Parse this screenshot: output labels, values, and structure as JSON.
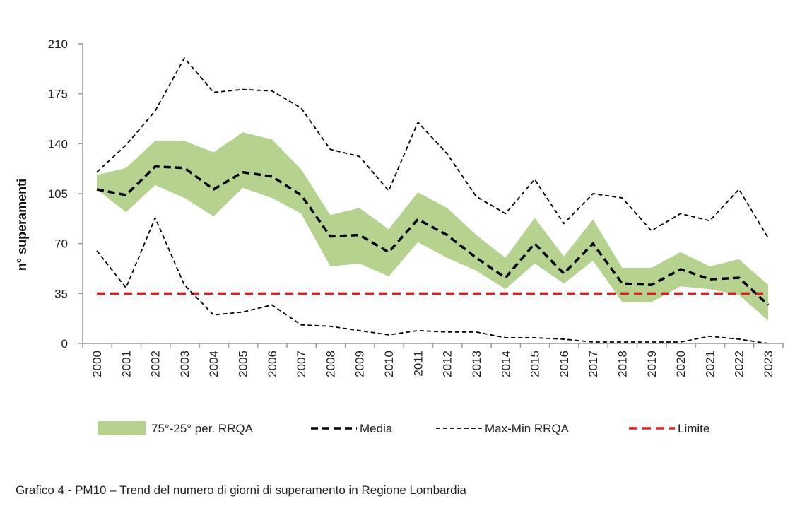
{
  "chart_data": {
    "type": "line",
    "title": "",
    "xlabel": "",
    "ylabel": "n° superamenti",
    "ylim": [
      0,
      210
    ],
    "yticks": [
      0,
      35,
      70,
      105,
      140,
      175,
      210
    ],
    "grid": false,
    "legend_position": "bottom",
    "categories": [
      "2000",
      "2001",
      "2002",
      "2003",
      "2004",
      "2005",
      "2006",
      "2007",
      "2008",
      "2009",
      "2010",
      "2011",
      "2012",
      "2013",
      "2014",
      "2015",
      "2016",
      "2017",
      "2018",
      "2019",
      "2020",
      "2021",
      "2022",
      "2023"
    ],
    "band": {
      "name": "75°-25° per. RRQA",
      "color": "#b5d38f",
      "upper": [
        118,
        123,
        142,
        142,
        134,
        148,
        143,
        122,
        90,
        95,
        80,
        106,
        95,
        76,
        60,
        88,
        61,
        87,
        53,
        53,
        64,
        54,
        59,
        41
      ],
      "lower": [
        108,
        92,
        111,
        102,
        89,
        109,
        102,
        91,
        54,
        56,
        47,
        71,
        60,
        51,
        38,
        56,
        42,
        58,
        29,
        29,
        40,
        38,
        34,
        16
      ]
    },
    "series": [
      {
        "name": "Media",
        "color": "#000000",
        "style": "dashed-thick",
        "values": [
          108,
          104,
          124,
          123,
          108,
          120,
          117,
          104,
          75,
          76,
          64,
          87,
          76,
          60,
          46,
          70,
          49,
          70,
          42,
          41,
          52,
          45,
          46,
          27
        ]
      },
      {
        "name": "Max-Min RRQA",
        "color": "#000000",
        "style": "dashed-thin",
        "values": [
          120,
          139,
          163,
          200,
          176,
          178,
          177,
          165,
          136,
          131,
          107,
          155,
          133,
          103,
          91,
          115,
          84,
          105,
          102,
          79,
          91,
          86,
          108,
          74
        ]
      },
      {
        "name": "Max-Min RRQA (min)",
        "color": "#000000",
        "style": "dashed-thin",
        "values": [
          65,
          39,
          88,
          41,
          20,
          22,
          27,
          13,
          12,
          9,
          6,
          9,
          8,
          8,
          4,
          4,
          3,
          1,
          1,
          1,
          1,
          5,
          3,
          0
        ]
      },
      {
        "name": "Limite",
        "color": "#e02020",
        "style": "dashed-red",
        "values": [
          35,
          35,
          35,
          35,
          35,
          35,
          35,
          35,
          35,
          35,
          35,
          35,
          35,
          35,
          35,
          35,
          35,
          35,
          35,
          35,
          35,
          35,
          35,
          35
        ]
      }
    ],
    "legend": [
      "75°-25° per. RRQA",
      "Media",
      "Max-Min RRQA",
      "Limite"
    ]
  },
  "caption": "Grafico 4 - PM10 – Trend del numero di giorni di superamento in Regione Lombardia"
}
